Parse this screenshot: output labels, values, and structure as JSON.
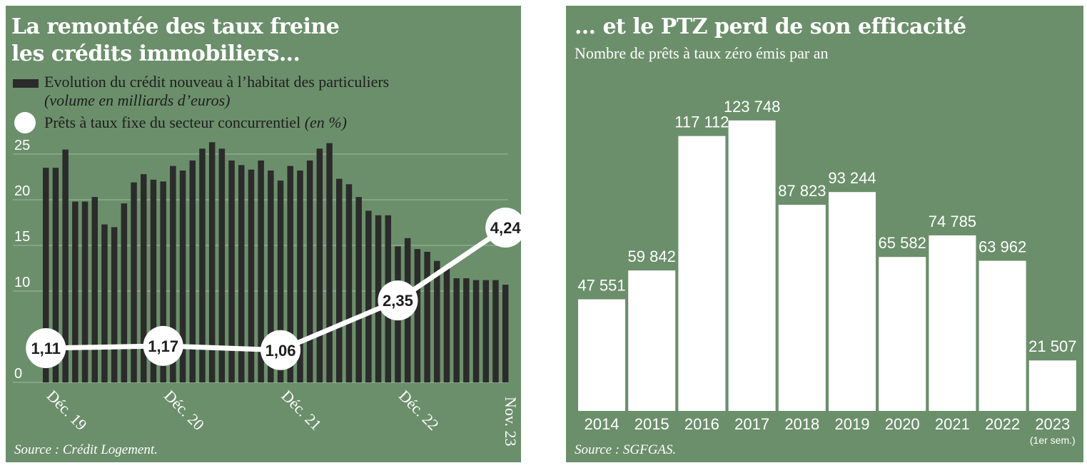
{
  "colors": {
    "panel_bg": "#6b8f6b",
    "bar_dark": "#2b2b2b",
    "bar_white": "#ffffff",
    "text_white": "#ffffff",
    "text_dark": "#1e1e1e"
  },
  "left": {
    "title_line1": "La remontée des taux freine",
    "title_line2": "les crédits immobiliers…",
    "legend_bar_label": "Evolution du crédit nouveau à l’habitat des particuliers",
    "legend_bar_unit": "(volume en milliards d’euros)",
    "legend_line_label": "Prêts à taux fixe du secteur concurrentiel",
    "legend_line_unit": "(en %)",
    "source": "Source : Crédit Logement."
  },
  "right": {
    "title": "… et le PTZ perd de son efficacité",
    "subtitle": "Nombre de prêts à taux zéro émis par an",
    "source": "Source : SGFGAS.",
    "note_2023": "(1er sem.)"
  },
  "chart_data": [
    {
      "type": "bar",
      "title": "La remontée des taux freine les crédits immobiliers…",
      "series": [
        {
          "name": "Evolution du crédit nouveau à l’habitat des particuliers (volume en milliards d’euros)",
          "type": "bar",
          "values": [
            23.5,
            23.5,
            25.5,
            19.8,
            19.8,
            20.3,
            17.3,
            17.0,
            19.6,
            21.9,
            22.8,
            22.2,
            22.0,
            23.7,
            23.2,
            24.3,
            25.6,
            26.3,
            25.6,
            24.3,
            23.8,
            23.3,
            24.3,
            23.2,
            22.1,
            23.7,
            23.2,
            24.3,
            25.6,
            26.2,
            22.3,
            21.7,
            20.3,
            18.8,
            18.3,
            18.3,
            14.9,
            15.8,
            14.6,
            14.3,
            13.3,
            12.6,
            11.4,
            11.4,
            11.2,
            11.2,
            11.2,
            10.7
          ]
        },
        {
          "name": "Prêts à taux fixe du secteur concurrentiel (en %)",
          "type": "line",
          "points": [
            {
              "index": 0,
              "value": 1.11,
              "label": "1,11"
            },
            {
              "index": 12,
              "value": 1.17,
              "label": "1,17"
            },
            {
              "index": 24,
              "value": 1.06,
              "label": "1,06"
            },
            {
              "index": 36,
              "value": 2.35,
              "label": "2,35"
            },
            {
              "index": 47,
              "value": 4.24,
              "label": "4,24"
            }
          ]
        }
      ],
      "y_ticks": [
        "25",
        "20",
        "15",
        "10",
        "0"
      ],
      "y_tick_values": [
        25,
        20,
        15,
        10,
        0
      ],
      "ylim": [
        0,
        27
      ],
      "x_tick_labels": [
        {
          "index": 0,
          "label": "Déc. 19"
        },
        {
          "index": 12,
          "label": "Déc. 20"
        },
        {
          "index": 24,
          "label": "Déc. 21"
        },
        {
          "index": 36,
          "label": "Déc. 22"
        },
        {
          "index": 47,
          "label": "Nov. 23"
        }
      ],
      "grid": true
    },
    {
      "type": "bar",
      "title": "… et le PTZ perd de son efficacité",
      "subtitle": "Nombre de prêts à taux zéro émis par an",
      "categories": [
        "2014",
        "2015",
        "2016",
        "2017",
        "2018",
        "2019",
        "2020",
        "2021",
        "2022",
        "2023"
      ],
      "values": [
        47551,
        59842,
        117112,
        123748,
        87823,
        93244,
        65582,
        74785,
        63962,
        21507
      ],
      "value_labels": [
        "47 551",
        "59 842",
        "117 112",
        "123 748",
        "87 823",
        "93 244",
        "65 582",
        "74 785",
        "63 962",
        "21 507"
      ],
      "ylim": [
        0,
        124000
      ],
      "grid": false
    }
  ]
}
